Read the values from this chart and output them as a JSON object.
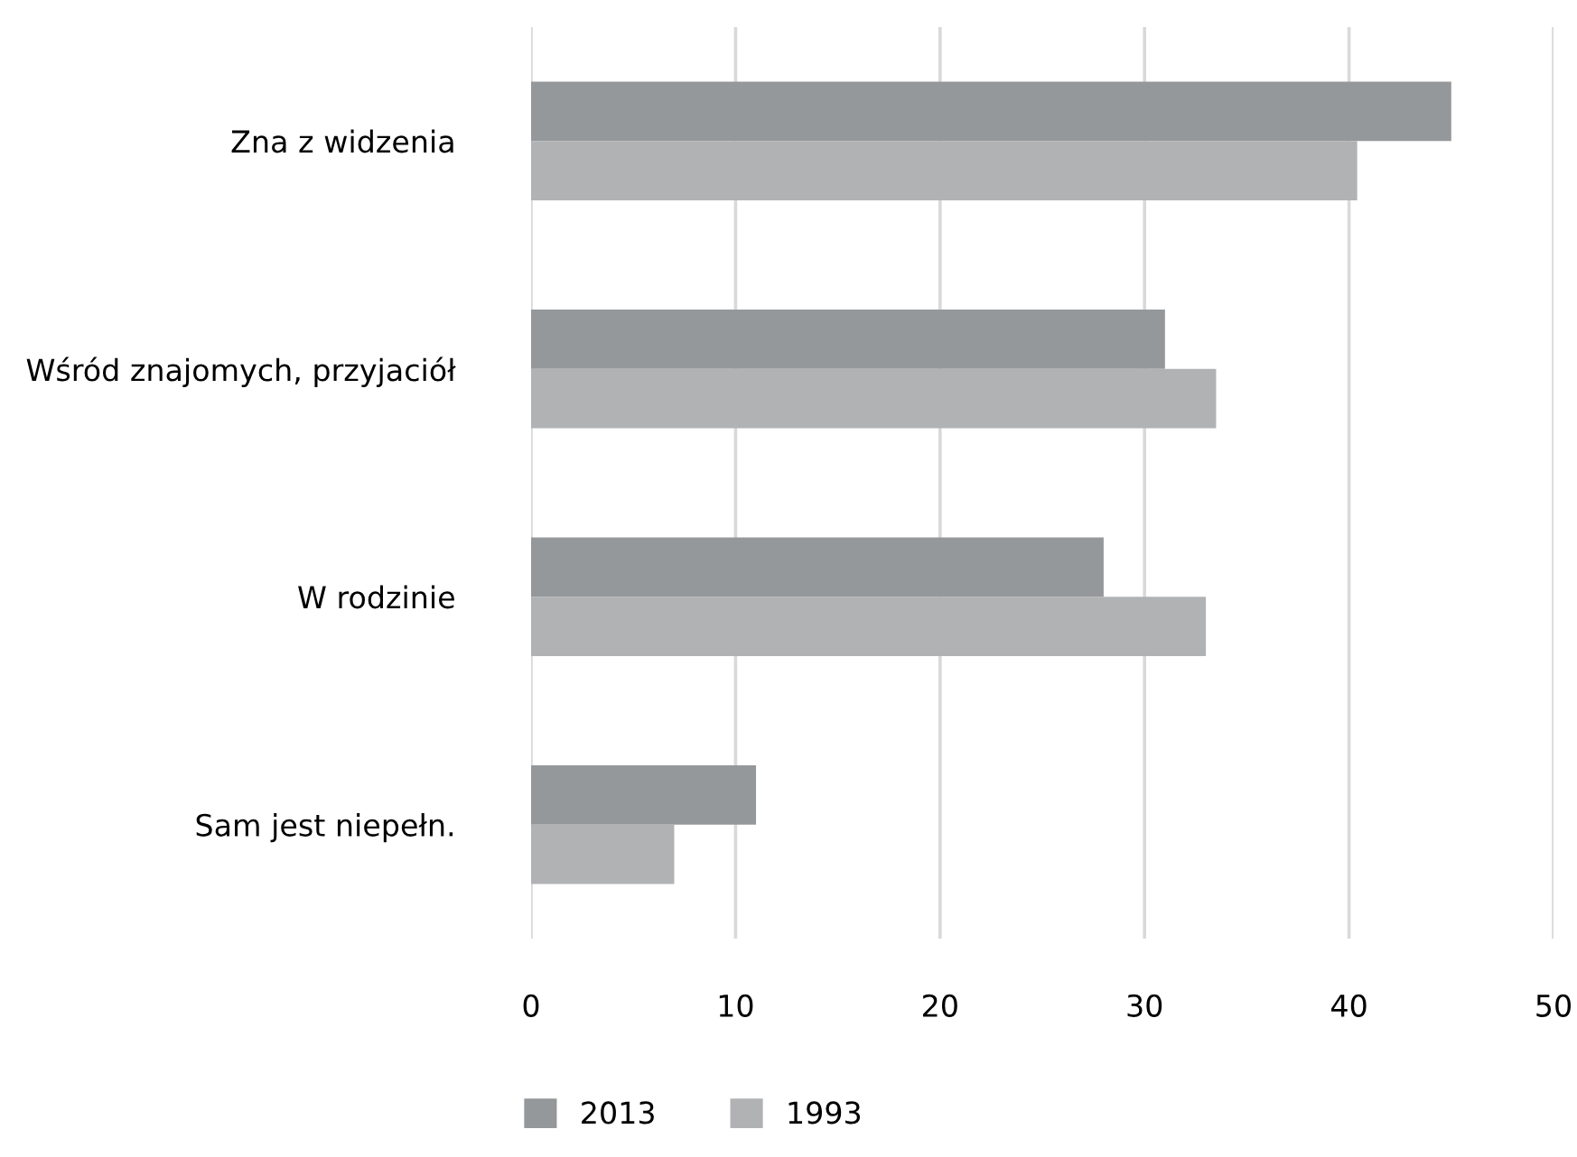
{
  "chart_data": {
    "type": "bar",
    "orientation": "horizontal",
    "categories": [
      "Zna z widzenia",
      "Wśród znajomych, przyjaciół",
      "W rodzinie",
      "Sam jest niepełn."
    ],
    "series": [
      {
        "name": "2013",
        "color": "#95989a",
        "values": [
          45,
          31,
          28,
          11
        ]
      },
      {
        "name": "1993",
        "color": "#b1b2b4",
        "values": [
          40.4,
          33.5,
          33,
          7
        ]
      }
    ],
    "xlim": [
      0,
      50
    ],
    "xticks": [
      0,
      10,
      20,
      30,
      40,
      50
    ],
    "grid": "x",
    "legend": "bottom"
  }
}
